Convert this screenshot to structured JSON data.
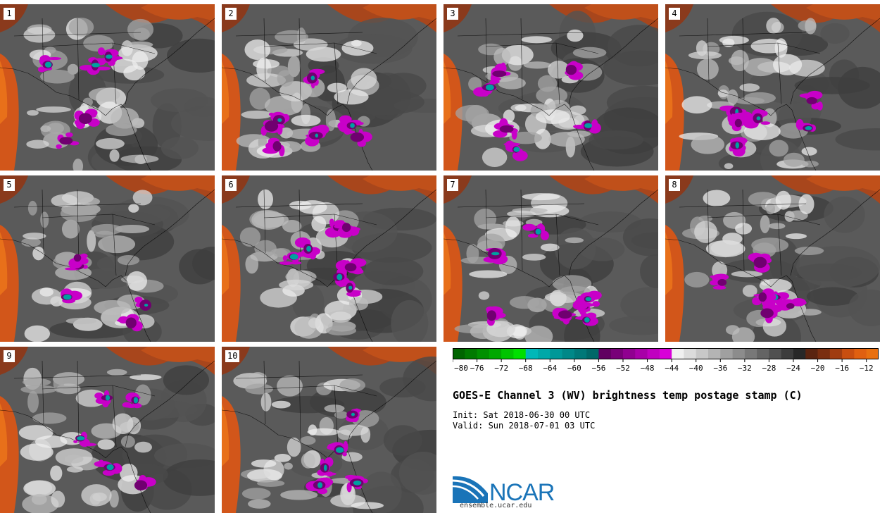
{
  "stamps": [
    {
      "number": "1"
    },
    {
      "number": "2"
    },
    {
      "number": "3"
    },
    {
      "number": "4"
    },
    {
      "number": "5"
    },
    {
      "number": "6"
    },
    {
      "number": "7"
    },
    {
      "number": "8"
    },
    {
      "number": "9"
    },
    {
      "number": "10"
    }
  ],
  "colorbar": {
    "min": -80,
    "max": -10,
    "step": 2,
    "tick_labels": [
      "-80",
      "-76",
      "-72",
      "-68",
      "-64",
      "-60",
      "-56",
      "-52",
      "-48",
      "-44",
      "-40",
      "-36",
      "-32",
      "-28",
      "-24",
      "-20",
      "-16",
      "-12"
    ],
    "colors": [
      "#006400",
      "#007a00",
      "#009000",
      "#00a800",
      "#00c400",
      "#00e000",
      "#00b8b8",
      "#00a8a8",
      "#009898",
      "#008888",
      "#007878",
      "#006868",
      "#600060",
      "#780078",
      "#900090",
      "#a800a8",
      "#c000c0",
      "#d800d8",
      "#f0f0f0",
      "#dcdcdc",
      "#c8c8c8",
      "#b4b4b4",
      "#a0a0a0",
      "#8c8c8c",
      "#787878",
      "#646464",
      "#505050",
      "#3c3c3c",
      "#282828",
      "#5a2410",
      "#7a2e10",
      "#a03c10",
      "#c84e10",
      "#e06010",
      "#e87010"
    ]
  },
  "title": "GOES-E Channel 3 (WV) brightness temp postage stamp (C)",
  "init": "Init: Sat 2018-06-30 00 UTC",
  "valid": "Valid: Sun 2018-07-01 03 UTC",
  "logo": {
    "text": "NCAR",
    "url": "ensemble.ucar.edu"
  }
}
